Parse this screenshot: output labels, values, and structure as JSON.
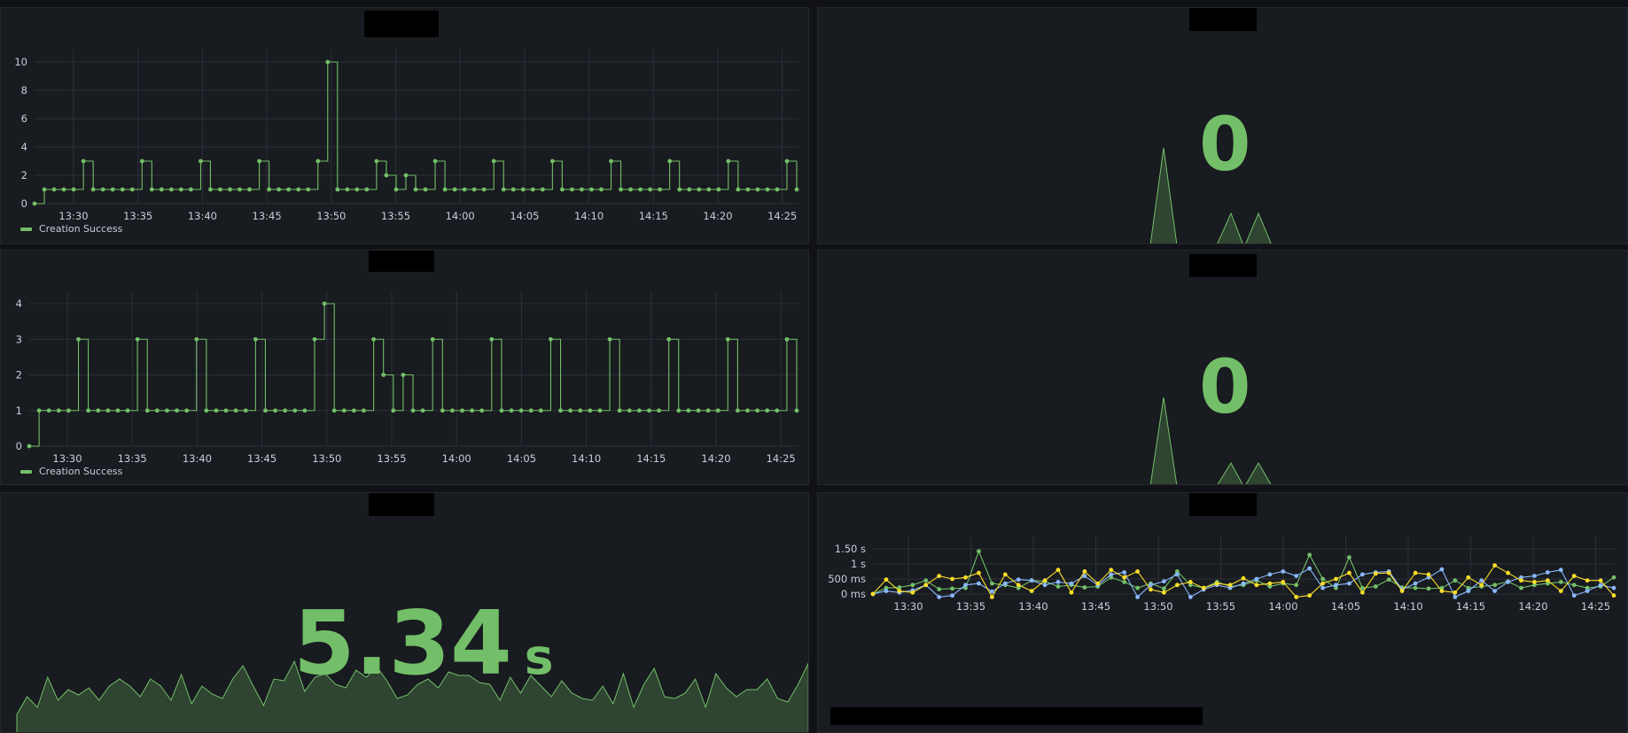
{
  "colors": {
    "green": "#73bf69",
    "blue": "#8ab8ff",
    "yellow": "#fade2a",
    "grid": "#2c3039",
    "text": "#ccccdc",
    "panel_bg": "#181b1f"
  },
  "x_ticks": [
    "13:30",
    "13:35",
    "13:40",
    "13:45",
    "13:50",
    "13:55",
    "14:00",
    "14:05",
    "14:10",
    "14:15",
    "14:20",
    "14:25"
  ],
  "panels": {
    "top_left": {
      "legend": "Creation Success"
    },
    "mid_left": {
      "legend": "Creation Success"
    },
    "top_right": {
      "value": "0"
    },
    "mid_right": {
      "value": "0"
    },
    "bottom_left": {
      "value": "5.34",
      "unit": "s"
    },
    "bottom_right": {}
  },
  "chart_data": [
    {
      "type": "line",
      "panel": "top_left",
      "ylim": [
        0,
        10
      ],
      "y_ticks": [
        "0",
        "2",
        "4",
        "6",
        "8",
        "10"
      ],
      "x_ticks": [
        "13:30",
        "13:35",
        "13:40",
        "13:45",
        "13:50",
        "13:55",
        "14:00",
        "14:05",
        "14:10",
        "14:15",
        "14:20",
        "14:25"
      ],
      "series": [
        {
          "name": "Creation Success",
          "values": [
            0,
            1,
            1,
            1,
            1,
            3,
            1,
            1,
            1,
            1,
            1,
            3,
            1,
            1,
            1,
            1,
            1,
            3,
            1,
            1,
            1,
            1,
            1,
            3,
            1,
            1,
            1,
            1,
            1,
            3,
            10,
            1,
            1,
            1,
            1,
            3,
            2,
            1,
            2,
            1,
            1,
            3,
            1,
            1,
            1,
            1,
            1,
            3,
            1,
            1,
            1,
            1,
            1,
            3,
            1,
            1,
            1,
            1,
            1,
            3,
            1,
            1,
            1,
            1,
            1,
            3,
            1,
            1,
            1,
            1,
            1,
            3,
            1,
            1,
            1,
            1,
            1,
            3,
            1
          ]
        }
      ]
    },
    {
      "type": "line",
      "panel": "mid_left",
      "ylim": [
        0,
        4
      ],
      "y_ticks": [
        "0",
        "1",
        "2",
        "3",
        "4"
      ],
      "x_ticks": [
        "13:30",
        "13:35",
        "13:40",
        "13:45",
        "13:50",
        "13:55",
        "14:00",
        "14:05",
        "14:10",
        "14:15",
        "14:20",
        "14:25"
      ],
      "series": [
        {
          "name": "Creation Success",
          "values": [
            0,
            1,
            1,
            1,
            1,
            3,
            1,
            1,
            1,
            1,
            1,
            3,
            1,
            1,
            1,
            1,
            1,
            3,
            1,
            1,
            1,
            1,
            1,
            3,
            1,
            1,
            1,
            1,
            1,
            3,
            4,
            1,
            1,
            1,
            1,
            3,
            2,
            1,
            2,
            1,
            1,
            3,
            1,
            1,
            1,
            1,
            1,
            3,
            1,
            1,
            1,
            1,
            1,
            3,
            1,
            1,
            1,
            1,
            1,
            3,
            1,
            1,
            1,
            1,
            1,
            3,
            1,
            1,
            1,
            1,
            1,
            3,
            1,
            1,
            1,
            1,
            1,
            3,
            1
          ]
        }
      ]
    },
    {
      "type": "line",
      "panel": "bottom_right",
      "ylim": [
        0,
        1.5
      ],
      "y_ticks": [
        "0 ms",
        "500 ms",
        "1 s",
        "1.50 s"
      ],
      "x_ticks": [
        "13:30",
        "13:35",
        "13:40",
        "13:45",
        "13:50",
        "13:55",
        "14:00",
        "14:05",
        "14:10",
        "14:15",
        "14:20",
        "14:25"
      ],
      "series": [
        {
          "values": [
            0,
            0.2,
            0.22,
            0.3,
            0.45,
            0.16,
            0.18,
            0.2,
            1.42,
            0.35,
            0.3,
            0.2,
            0.45,
            0.42,
            0.25,
            0.3,
            0.22,
            0.25,
            0.55,
            0.4,
            0.2,
            0.35,
            0.18,
            0.75,
            0.3,
            0.2,
            0.4,
            0.25,
            0.3,
            0.45,
            0.25,
            0.35,
            0.3,
            1.3,
            0.5,
            0.2,
            1.22,
            0.2,
            0.25,
            0.48,
            0.22,
            0.2,
            0.18,
            0.2,
            0.45,
            0.2,
            0.25,
            0.3,
            0.42,
            0.2,
            0.3,
            0.35,
            0.4,
            0.3,
            0.2,
            0.25,
            0.55
          ]
        },
        {
          "values": [
            0,
            0.1,
            0.05,
            0.12,
            0.3,
            -0.1,
            -0.05,
            0.3,
            0.35,
            0.08,
            0.35,
            0.48,
            0.45,
            0.3,
            0.4,
            0.35,
            0.6,
            0.3,
            0.65,
            0.72,
            -0.1,
            0.3,
            0.42,
            0.65,
            -0.1,
            0.15,
            0.3,
            0.2,
            0.35,
            0.5,
            0.65,
            0.75,
            0.6,
            0.85,
            0.2,
            0.3,
            0.35,
            0.65,
            0.72,
            0.75,
            0.15,
            0.35,
            0.55,
            0.82,
            -0.1,
            0.1,
            0.45,
            0.1,
            0.4,
            0.55,
            0.6,
            0.72,
            0.8,
            -0.05,
            0.1,
            0.3,
            0.2
          ]
        },
        {
          "values": [
            0,
            0.48,
            0.1,
            0.05,
            0.3,
            0.6,
            0.5,
            0.55,
            0.7,
            -0.1,
            0.65,
            0.3,
            0.1,
            0.45,
            0.8,
            0.05,
            0.75,
            0.35,
            0.8,
            0.55,
            0.75,
            0.15,
            0.05,
            0.3,
            0.4,
            0.2,
            0.35,
            0.3,
            0.52,
            0.3,
            0.35,
            0.4,
            -0.1,
            -0.05,
            0.35,
            0.5,
            0.7,
            0.05,
            0.68,
            0.7,
            0.1,
            0.7,
            0.65,
            0.1,
            0.05,
            0.55,
            0.3,
            0.95,
            0.7,
            0.45,
            0.4,
            0.45,
            0.1,
            0.6,
            0.45,
            0.45,
            -0.05
          ]
        }
      ]
    }
  ]
}
